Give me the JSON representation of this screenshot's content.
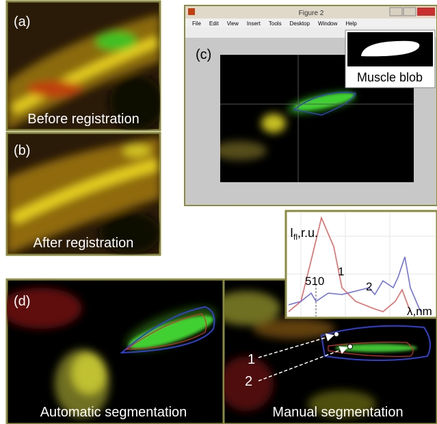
{
  "panels": {
    "a": {
      "label": "(a)",
      "caption": "Before registration"
    },
    "b": {
      "label": "(b)",
      "caption": "After registration"
    },
    "c": {
      "label": "(c)",
      "window_title": "Figure 2",
      "menu": [
        "File",
        "Edit",
        "View",
        "Insert",
        "Tools",
        "Desktop",
        "Window",
        "Help"
      ],
      "inset_caption": "Muscle blob"
    },
    "spectrum": {
      "y_label": "I",
      "y_label_sub": "fl",
      "y_label_unit": ",r.u.",
      "x_label": "λ,nm",
      "marker": "510",
      "curve_1": "1",
      "curve_2": "2"
    },
    "d": {
      "label": "(d)",
      "left_caption": "Automatic segmentation",
      "right_caption": "Manual segmentation",
      "point_1": "1",
      "point_2": "2"
    }
  }
}
